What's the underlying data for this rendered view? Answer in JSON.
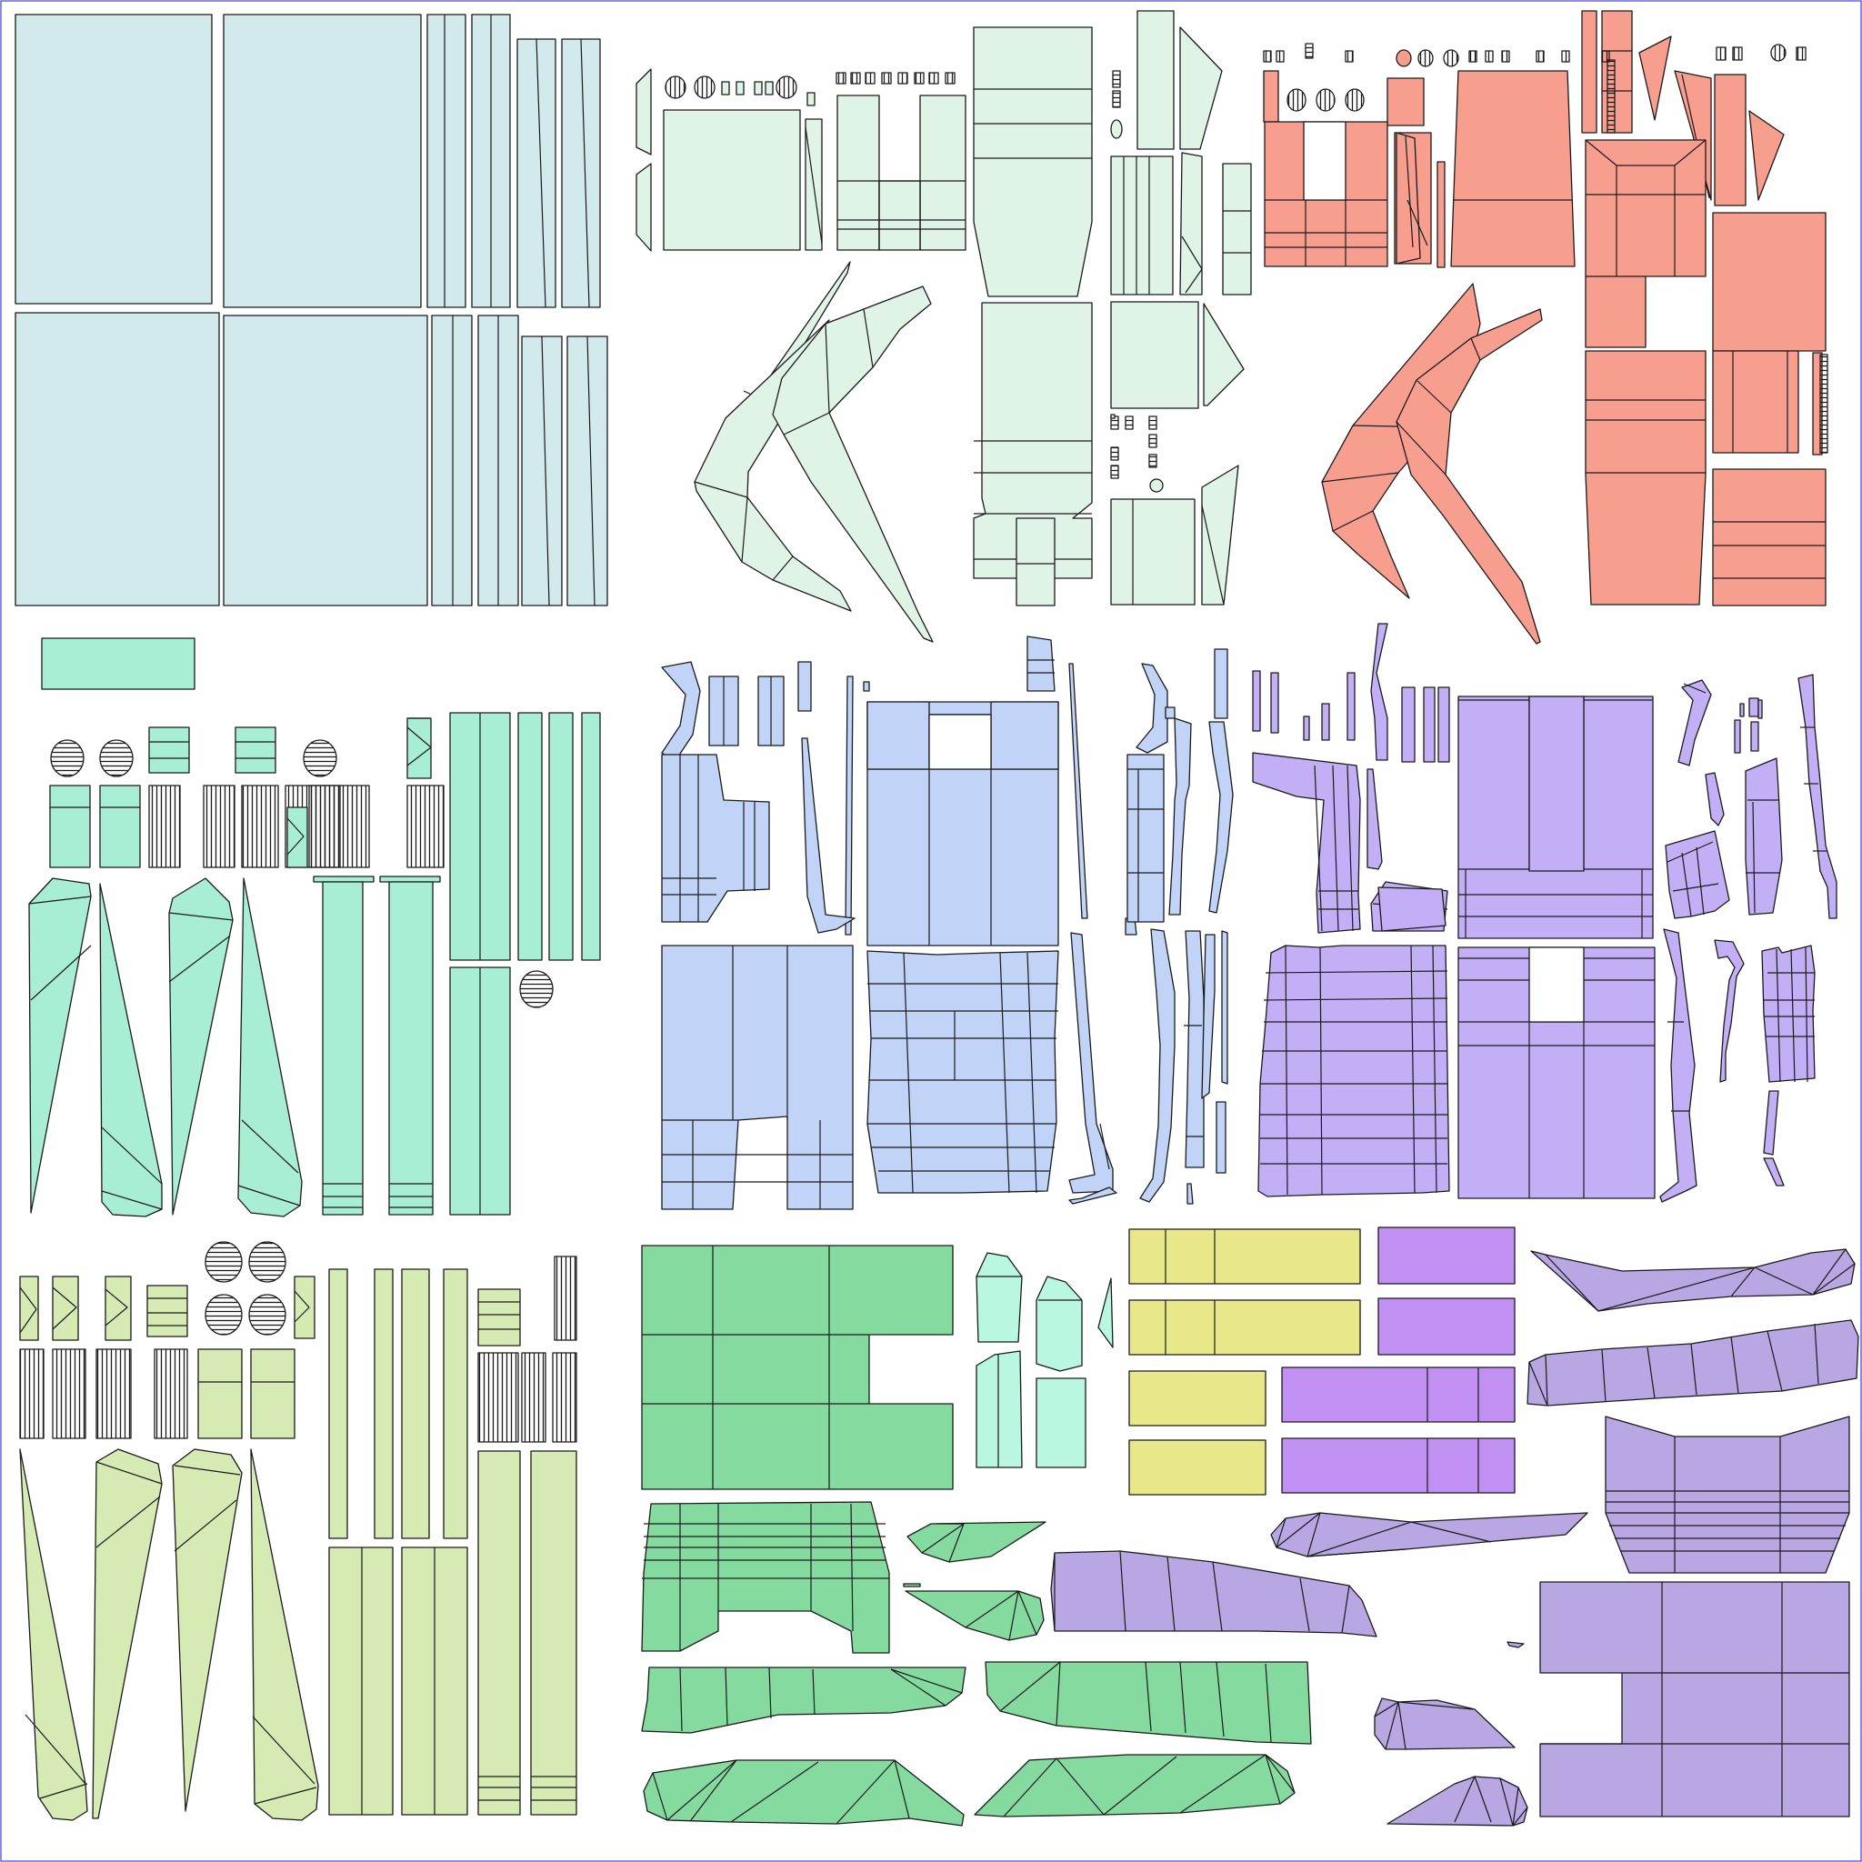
{
  "view": {
    "kind": "uv-texture-atlas",
    "background": "#ffffff",
    "frame_color": "#4a4ad8",
    "outline_color": "#1a1a1a"
  },
  "groups": [
    {
      "name": "cyan-panels",
      "fill": "#d3eaec"
    },
    {
      "name": "mint-parts",
      "fill": "#dff3e6"
    },
    {
      "name": "salmon-parts",
      "fill": "#f89e8f"
    },
    {
      "name": "aqua-parts",
      "fill": "#a8eed5"
    },
    {
      "name": "blue-parts",
      "fill": "#c1d3f7"
    },
    {
      "name": "violet-parts",
      "fill": "#c3aff5"
    },
    {
      "name": "lime-parts",
      "fill": "#d5ebb3"
    },
    {
      "name": "green-parts",
      "fill": "#84da9f"
    },
    {
      "name": "pale-aqua-parts",
      "fill": "#b9f7e0"
    },
    {
      "name": "yellow-parts",
      "fill": "#e8e88b"
    },
    {
      "name": "purple-parts",
      "fill": "#c091f3"
    },
    {
      "name": "lavender-parts",
      "fill": "#b8a7e3"
    }
  ]
}
